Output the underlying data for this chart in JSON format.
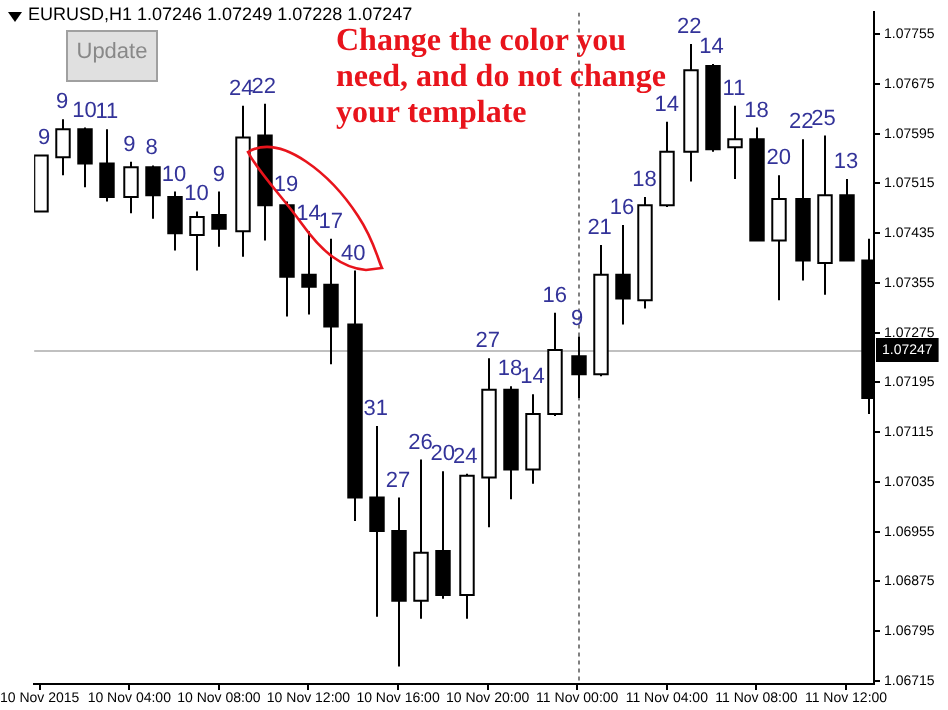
{
  "chart_data": {
    "type": "candlestick",
    "title": "EURUSD,H1 1.07246 1.07249 1.07228 1.07247",
    "annotations": [
      "Change the color you need, and do not change your template",
      "Update"
    ],
    "x": [
      "2015-11-10T00:00",
      "2015-11-10T01:00",
      "2015-11-10T02:00",
      "2015-11-10T03:00",
      "2015-11-10T04:00",
      "2015-11-10T05:00",
      "2015-11-10T06:00",
      "2015-11-10T07:00",
      "2015-11-10T08:00",
      "2015-11-10T09:00",
      "2015-11-10T10:00",
      "2015-11-10T11:00",
      "2015-11-10T12:00",
      "2015-11-10T13:00",
      "2015-11-10T14:00",
      "2015-11-10T15:00",
      "2015-11-10T16:00",
      "2015-11-10T17:00",
      "2015-11-10T18:00",
      "2015-11-10T19:00",
      "2015-11-10T20:00",
      "2015-11-10T21:00",
      "2015-11-10T22:00",
      "2015-11-10T23:00",
      "2015-11-11T00:00",
      "2015-11-11T01:00",
      "2015-11-11T02:00",
      "2015-11-11T03:00",
      "2015-11-11T04:00",
      "2015-11-11T05:00",
      "2015-11-11T06:00",
      "2015-11-11T07:00",
      "2015-11-11T08:00",
      "2015-11-11T09:00",
      "2015-11-11T10:00",
      "2015-11-11T11:00",
      "2015-11-11T12:00",
      "2015-11-11T13:00"
    ],
    "ohlc": [
      [
        1.0747,
        1.0756,
        1.0747,
        1.0756
      ],
      [
        1.07557,
        1.07618,
        1.07528,
        1.07602
      ],
      [
        1.07602,
        1.07605,
        1.07509,
        1.07547
      ],
      [
        1.07547,
        1.07602,
        1.07486,
        1.07493
      ],
      [
        1.07493,
        1.0755,
        1.07467,
        1.07541
      ],
      [
        1.07541,
        1.07544,
        1.07458,
        1.07496
      ],
      [
        1.07493,
        1.07502,
        1.07407,
        1.07435
      ],
      [
        1.07432,
        1.0747,
        1.07375,
        1.07461
      ],
      [
        1.07464,
        1.07502,
        1.07413,
        1.07442
      ],
      [
        1.07438,
        1.0764,
        1.07397,
        1.07589
      ],
      [
        1.07592,
        1.07643,
        1.07423,
        1.0748
      ],
      [
        1.0748,
        1.07486,
        1.07301,
        1.07365
      ],
      [
        1.07368,
        1.07438,
        1.07304,
        1.07349
      ],
      [
        1.07352,
        1.07426,
        1.07224,
        1.07285
      ],
      [
        1.07288,
        1.07375,
        1.06972,
        1.0701
      ],
      [
        1.0701,
        1.07125,
        1.06818,
        1.06956
      ],
      [
        1.06956,
        1.0701,
        1.06738,
        1.06844
      ],
      [
        1.06844,
        1.07071,
        1.06815,
        1.06921
      ],
      [
        1.06924,
        1.07052,
        1.06847,
        1.06853
      ],
      [
        1.06853,
        1.07048,
        1.06815,
        1.07045
      ],
      [
        1.07042,
        1.07234,
        1.06962,
        1.07183
      ],
      [
        1.07183,
        1.07189,
        1.07007,
        1.07055
      ],
      [
        1.07055,
        1.07176,
        1.07032,
        1.07144
      ],
      [
        1.07144,
        1.07307,
        1.07141,
        1.07247
      ],
      [
        1.07237,
        1.07269,
        1.0717,
        1.07208
      ],
      [
        1.07208,
        1.07416,
        1.07205,
        1.07368
      ],
      [
        1.07368,
        1.07448,
        1.07288,
        1.0733
      ],
      [
        1.07327,
        1.07493,
        1.07314,
        1.0748
      ],
      [
        1.0748,
        1.07614,
        1.07477,
        1.07566
      ],
      [
        1.07566,
        1.07739,
        1.07518,
        1.07697
      ],
      [
        1.07704,
        1.07707,
        1.07566,
        1.0757
      ],
      [
        1.07573,
        1.0764,
        1.07522,
        1.07586
      ],
      [
        1.07586,
        1.07605,
        1.07423,
        1.07423
      ],
      [
        1.07423,
        1.07528,
        1.07327,
        1.0749
      ],
      [
        1.0749,
        1.07586,
        1.07359,
        1.07391
      ],
      [
        1.07387,
        1.07592,
        1.07336,
        1.07496
      ],
      [
        1.07496,
        1.07522,
        1.07391,
        1.07391
      ],
      [
        1.07391,
        1.07426,
        1.07144,
        1.0717
      ]
    ],
    "value_labels": [
      "9",
      "9",
      "10",
      "11",
      "9",
      "8",
      "10",
      "10",
      "9",
      "24",
      "22",
      "19",
      "14",
      "17",
      "40",
      "31",
      "27",
      "26",
      "20",
      "24",
      "27",
      "18",
      "14",
      "16",
      "9",
      "21",
      "16",
      "18",
      "14",
      "22",
      "14",
      "11",
      "18",
      "20",
      "22",
      "25",
      "13",
      null
    ],
    "xlim": [
      "2015-11-09T23:45",
      "2015-11-11T13:15"
    ],
    "xticks": [
      {
        "value": "2015-11-10T00:00",
        "label": "10 Nov 2015"
      },
      {
        "value": "2015-11-10T04:00",
        "label": "10 Nov 04:00"
      },
      {
        "value": "2015-11-10T08:00",
        "label": "10 Nov 08:00"
      },
      {
        "value": "2015-11-10T12:00",
        "label": "10 Nov 12:00"
      },
      {
        "value": "2015-11-10T16:00",
        "label": "10 Nov 16:00"
      },
      {
        "value": "2015-11-10T20:00",
        "label": "10 Nov 20:00"
      },
      {
        "value": "2015-11-11T00:00",
        "label": "11 Nov 00:00"
      },
      {
        "value": "2015-11-11T04:00",
        "label": "11 Nov 04:00"
      },
      {
        "value": "2015-11-11T08:00",
        "label": "11 Nov 08:00"
      },
      {
        "value": "2015-11-11T12:00",
        "label": "11 Nov 12:00"
      }
    ],
    "ylim": [
      1.0671,
      1.0779
    ],
    "yticks": [
      1.06715,
      1.06795,
      1.06875,
      1.06955,
      1.07035,
      1.07115,
      1.07195,
      1.07275,
      1.07355,
      1.07435,
      1.07515,
      1.07595,
      1.07675,
      1.07755
    ],
    "ref_lines": [
      {
        "axis": "x",
        "value": "2015-11-11T00:00",
        "color": "#808080",
        "line_style": "dotted"
      },
      {
        "axis": "y",
        "value": 1.07247,
        "label": "1.07247",
        "color": "#c0c0c0"
      }
    ],
    "grid": false,
    "legend": false
  }
}
